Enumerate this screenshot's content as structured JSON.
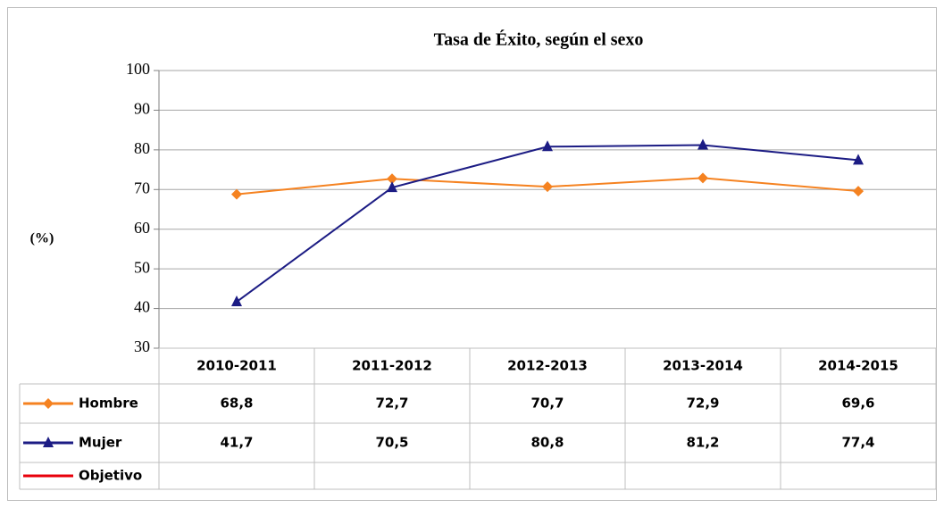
{
  "chart_data": {
    "type": "line",
    "title": "Tasa de Éxito, según el sexo",
    "ylabel": "(%)",
    "categories": [
      "2010-2011",
      "2011-2012",
      "2012-2013",
      "2013-2014",
      "2014-2015"
    ],
    "series": [
      {
        "name": "Hombre",
        "color": "#f58220",
        "marker": "diamond",
        "values": [
          68.8,
          72.7,
          70.7,
          72.9,
          69.6
        ],
        "value_labels": [
          "68,8",
          "72,7",
          "70,7",
          "72,9",
          "69,6"
        ]
      },
      {
        "name": "Mujer",
        "color": "#1c1c84",
        "marker": "triangle",
        "values": [
          41.7,
          70.5,
          80.8,
          81.2,
          77.4
        ],
        "value_labels": [
          "41,7",
          "70,5",
          "80,8",
          "81,2",
          "77,4"
        ]
      },
      {
        "name": "Objetivo",
        "color": "#e8000b",
        "marker": "none",
        "values": [
          null,
          null,
          null,
          null,
          null
        ]
      }
    ],
    "ylim": [
      30,
      100
    ],
    "yticks": [
      30,
      40,
      50,
      60,
      70,
      80,
      90,
      100
    ],
    "grid": true,
    "data_table": true
  }
}
